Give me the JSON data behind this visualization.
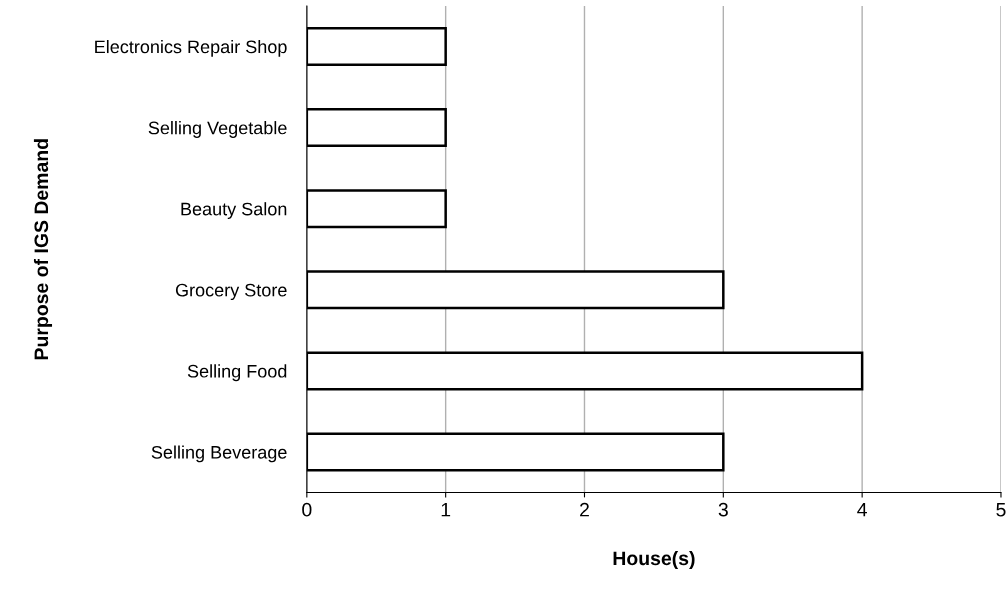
{
  "chart_data": {
    "type": "bar",
    "orientation": "horizontal",
    "xlabel": "House(s)",
    "ylabel": "Purpose of IGS Demand",
    "categories": [
      "Electronics Repair Shop",
      "Selling Vegetable",
      "Beauty Salon",
      "Grocery Store",
      "Selling Food",
      "Selling Beverage"
    ],
    "values": [
      1,
      1,
      1,
      3,
      4,
      3
    ],
    "color": "#ffffff",
    "xlim": [
      0,
      5
    ],
    "xticks": [
      0,
      1,
      2,
      3,
      4,
      5
    ],
    "grid": "x"
  }
}
